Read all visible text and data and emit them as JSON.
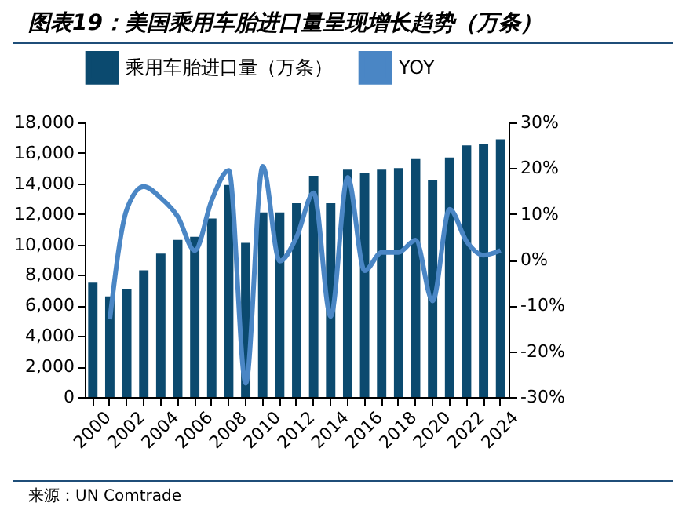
{
  "chart_data": {
    "type": "bar",
    "title": "图表19：美国乘用车胎进口量呈现增长趋势（万条）",
    "categories": [
      "2000",
      null,
      "2002",
      null,
      "2004",
      null,
      "2006",
      null,
      "2008",
      null,
      "2010",
      null,
      "2012",
      null,
      "2014",
      null,
      "2016",
      null,
      "2018",
      null,
      "2020",
      null,
      "2022",
      null,
      "2024"
    ],
    "series": [
      {
        "name": "乘用车胎进口量（万条）",
        "color": "#0b4a6f",
        "values": [
          7500,
          6600,
          7100,
          8300,
          9400,
          10300,
          10500,
          11700,
          13900,
          10100,
          12100,
          12100,
          12700,
          14500,
          12700,
          14900,
          14700,
          14900,
          15000,
          15600,
          14200,
          15700,
          16500,
          16600,
          16900
        ]
      },
      {
        "name": "YOY",
        "type": "line",
        "axis": "y2",
        "color": "#4a86c5",
        "values": [
          null,
          -13,
          11,
          16,
          13.5,
          9.4,
          2,
          13,
          19.5,
          -27,
          20.4,
          -0.3,
          5,
          14.6,
          -12.4,
          18,
          -2.4,
          1.6,
          1.6,
          4.3,
          -9,
          11,
          4,
          1,
          2
        ]
      }
    ],
    "ylim": [
      0,
      18000
    ],
    "yticks": [
      {
        "value": 0,
        "label": "0"
      },
      {
        "value": 2000,
        "label": "2,000"
      },
      {
        "value": 4000,
        "label": "4,000"
      },
      {
        "value": 6000,
        "label": "6,000"
      },
      {
        "value": 8000,
        "label": "8,000"
      },
      {
        "value": 10000,
        "label": "10,000"
      },
      {
        "value": 12000,
        "label": "12,000"
      },
      {
        "value": 14000,
        "label": "14,000"
      },
      {
        "value": 16000,
        "label": "16,000"
      },
      {
        "value": 18000,
        "label": "18,000"
      }
    ],
    "y2lim": [
      -30,
      30
    ],
    "y2ticks": [
      {
        "value": -30,
        "label": "-30%"
      },
      {
        "value": -20,
        "label": "-20%"
      },
      {
        "value": -10,
        "label": "-10%"
      },
      {
        "value": 0,
        "label": "0%"
      },
      {
        "value": 10,
        "label": "10%"
      },
      {
        "value": 20,
        "label": "20%"
      },
      {
        "value": 30,
        "label": "30%"
      }
    ],
    "legend": "top",
    "grid": false,
    "annotations": [
      "来源：UN Comtrade"
    ]
  }
}
